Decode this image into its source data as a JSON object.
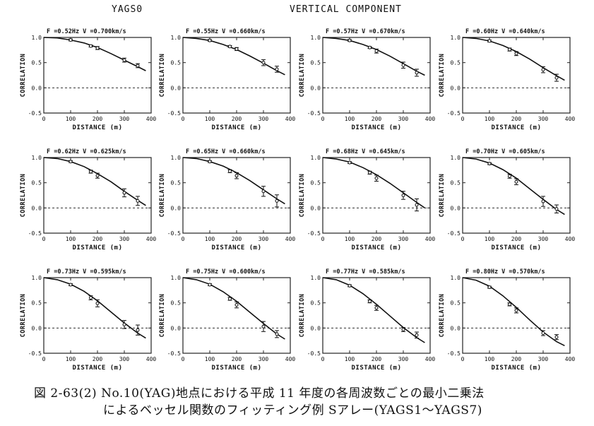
{
  "header": {
    "left": "YAGS0",
    "right": "VERTICAL COMPONENT"
  },
  "caption": {
    "line1": "図 2-63(2)  No.10(YAG)地点における平成 11 年度の各周波数ごとの最小二乗法",
    "line2": "によるベッセル関数のフィッティング例   Sアレー(YAGS1～YAGS7)"
  },
  "colors": {
    "ink": "#111111",
    "frame": "#222222"
  },
  "chart_data": [
    {
      "type": "line",
      "title": "F =0.52Hz  V =0.700km/s",
      "xlabel": "DISTANCE (m)",
      "ylabel": "CORRELATION",
      "xlim": [
        0,
        400
      ],
      "ylim": [
        -0.5,
        1.0
      ],
      "xticks": [
        "0",
        "100",
        "200",
        "300",
        "400"
      ],
      "yticks": [
        "-0.5",
        "0.0",
        "0.5",
        "1.0"
      ],
      "series": [
        {
          "type": "line",
          "x": [
            0,
            50,
            100,
            150,
            200,
            250,
            300,
            350,
            380
          ],
          "y": [
            1.0,
            0.99,
            0.95,
            0.89,
            0.8,
            0.68,
            0.55,
            0.42,
            0.34
          ]
        },
        {
          "type": "scatter",
          "x": [
            100,
            175,
            200,
            300,
            350
          ],
          "y": [
            0.95,
            0.83,
            0.79,
            0.55,
            0.44
          ],
          "err": [
            0.02,
            0.02,
            0.03,
            0.04,
            0.04
          ]
        }
      ]
    },
    {
      "type": "line",
      "title": "F =0.55Hz  V =0.660km/s",
      "xlabel": "DISTANCE (m)",
      "ylabel": "CORRELATION",
      "xlim": [
        0,
        400
      ],
      "ylim": [
        -0.5,
        1.0
      ],
      "xticks": [
        "0",
        "100",
        "200",
        "300",
        "400"
      ],
      "yticks": [
        "-0.5",
        "0.0",
        "0.5",
        "1.0"
      ],
      "series": [
        {
          "type": "line",
          "x": [
            0,
            50,
            100,
            150,
            200,
            250,
            300,
            350,
            380
          ],
          "y": [
            1.0,
            0.98,
            0.94,
            0.86,
            0.76,
            0.63,
            0.49,
            0.34,
            0.26
          ]
        },
        {
          "type": "scatter",
          "x": [
            100,
            175,
            200,
            300,
            350
          ],
          "y": [
            0.94,
            0.82,
            0.77,
            0.5,
            0.37
          ],
          "err": [
            0.02,
            0.02,
            0.03,
            0.06,
            0.06
          ]
        }
      ]
    },
    {
      "type": "line",
      "title": "F =0.57Hz  V =0.670km/s",
      "xlabel": "DISTANCE (m)",
      "ylabel": "CORRELATION",
      "xlim": [
        0,
        400
      ],
      "ylim": [
        -0.5,
        1.0
      ],
      "xticks": [
        "0",
        "100",
        "200",
        "300",
        "400"
      ],
      "yticks": [
        "-0.5",
        "0.0",
        "0.5",
        "1.0"
      ],
      "series": [
        {
          "type": "line",
          "x": [
            0,
            50,
            100,
            150,
            200,
            250,
            300,
            350,
            380
          ],
          "y": [
            1.0,
            0.98,
            0.94,
            0.86,
            0.76,
            0.63,
            0.48,
            0.33,
            0.25
          ]
        },
        {
          "type": "scatter",
          "x": [
            100,
            175,
            200,
            300,
            350
          ],
          "y": [
            0.94,
            0.8,
            0.73,
            0.45,
            0.3
          ],
          "err": [
            0.02,
            0.02,
            0.04,
            0.06,
            0.07
          ]
        }
      ]
    },
    {
      "type": "line",
      "title": "F =0.60Hz  V =0.640km/s",
      "xlabel": "DISTANCE (m)",
      "ylabel": "CORRELATION",
      "xlim": [
        0,
        400
      ],
      "ylim": [
        -0.5,
        1.0
      ],
      "xticks": [
        "0",
        "100",
        "200",
        "300",
        "400"
      ],
      "yticks": [
        "-0.5",
        "0.0",
        "0.5",
        "1.0"
      ],
      "series": [
        {
          "type": "line",
          "x": [
            0,
            50,
            100,
            150,
            200,
            250,
            300,
            350,
            380
          ],
          "y": [
            1.0,
            0.98,
            0.93,
            0.84,
            0.72,
            0.57,
            0.4,
            0.24,
            0.15
          ]
        },
        {
          "type": "scatter",
          "x": [
            100,
            175,
            200,
            300,
            350
          ],
          "y": [
            0.93,
            0.76,
            0.68,
            0.36,
            0.2
          ],
          "err": [
            0.02,
            0.03,
            0.04,
            0.06,
            0.07
          ]
        }
      ]
    },
    {
      "type": "line",
      "title": "F =0.62Hz  V =0.625km/s",
      "xlabel": "DISTANCE (m)",
      "ylabel": "CORRELATION",
      "xlim": [
        0,
        400
      ],
      "ylim": [
        -0.5,
        1.0
      ],
      "xticks": [
        "0",
        "100",
        "200",
        "300",
        "400"
      ],
      "yticks": [
        "-0.5",
        "0.0",
        "0.5",
        "1.0"
      ],
      "series": [
        {
          "type": "line",
          "x": [
            0,
            50,
            100,
            150,
            200,
            250,
            300,
            350,
            380
          ],
          "y": [
            1.0,
            0.98,
            0.92,
            0.82,
            0.68,
            0.52,
            0.33,
            0.15,
            0.05
          ]
        },
        {
          "type": "scatter",
          "x": [
            100,
            175,
            200,
            300,
            350
          ],
          "y": [
            0.92,
            0.72,
            0.64,
            0.3,
            0.14
          ],
          "err": [
            0.02,
            0.03,
            0.05,
            0.08,
            0.09
          ]
        }
      ]
    },
    {
      "type": "line",
      "title": "F =0.65Hz  V =0.660km/s",
      "xlabel": "DISTANCE (m)",
      "ylabel": "CORRELATION",
      "xlim": [
        0,
        400
      ],
      "ylim": [
        -0.5,
        1.0
      ],
      "xticks": [
        "0",
        "100",
        "200",
        "300",
        "400"
      ],
      "yticks": [
        "-0.5",
        "0.0",
        "0.5",
        "1.0"
      ],
      "series": [
        {
          "type": "line",
          "x": [
            0,
            50,
            100,
            150,
            200,
            250,
            300,
            350,
            380
          ],
          "y": [
            1.0,
            0.98,
            0.92,
            0.83,
            0.7,
            0.54,
            0.36,
            0.18,
            0.08
          ]
        },
        {
          "type": "scatter",
          "x": [
            100,
            175,
            200,
            300,
            350
          ],
          "y": [
            0.92,
            0.73,
            0.64,
            0.33,
            0.14
          ],
          "err": [
            0.02,
            0.03,
            0.06,
            0.1,
            0.12
          ]
        }
      ]
    },
    {
      "type": "line",
      "title": "F =0.68Hz  V =0.645km/s",
      "xlabel": "DISTANCE (m)",
      "ylabel": "CORRELATION",
      "xlim": [
        0,
        400
      ],
      "ylim": [
        -0.5,
        1.0
      ],
      "xticks": [
        "0",
        "100",
        "200",
        "300",
        "400"
      ],
      "yticks": [
        "-0.5",
        "0.0",
        "0.5",
        "1.0"
      ],
      "series": [
        {
          "type": "line",
          "x": [
            0,
            50,
            100,
            150,
            200,
            250,
            300,
            350,
            380
          ],
          "y": [
            1.0,
            0.97,
            0.91,
            0.8,
            0.66,
            0.49,
            0.3,
            0.11,
            0.0
          ]
        },
        {
          "type": "scatter",
          "x": [
            100,
            175,
            200,
            300,
            350
          ],
          "y": [
            0.9,
            0.7,
            0.59,
            0.25,
            0.06
          ],
          "err": [
            0.02,
            0.03,
            0.06,
            0.08,
            0.12
          ]
        }
      ]
    },
    {
      "type": "line",
      "title": "F =0.70Hz  V =0.605km/s",
      "xlabel": "DISTANCE (m)",
      "ylabel": "CORRELATION",
      "xlim": [
        0,
        400
      ],
      "ylim": [
        -0.5,
        1.0
      ],
      "xticks": [
        "0",
        "100",
        "200",
        "300",
        "400"
      ],
      "yticks": [
        "-0.5",
        "0.0",
        "0.5",
        "1.0"
      ],
      "series": [
        {
          "type": "line",
          "x": [
            0,
            50,
            100,
            150,
            200,
            250,
            300,
            350,
            380
          ],
          "y": [
            1.0,
            0.97,
            0.89,
            0.76,
            0.59,
            0.38,
            0.17,
            -0.03,
            -0.13
          ]
        },
        {
          "type": "scatter",
          "x": [
            100,
            175,
            200,
            300,
            350
          ],
          "y": [
            0.88,
            0.63,
            0.52,
            0.13,
            -0.02
          ],
          "err": [
            0.02,
            0.04,
            0.06,
            0.1,
            0.08
          ]
        }
      ]
    },
    {
      "type": "line",
      "title": "F =0.73Hz  V =0.595km/s",
      "xlabel": "DISTANCE (m)",
      "ylabel": "CORRELATION",
      "xlim": [
        0,
        400
      ],
      "ylim": [
        -0.5,
        1.0
      ],
      "xticks": [
        "0",
        "100",
        "200",
        "300",
        "400"
      ],
      "yticks": [
        "-0.5",
        "0.0",
        "0.5",
        "1.0"
      ],
      "series": [
        {
          "type": "line",
          "x": [
            0,
            50,
            100,
            150,
            200,
            250,
            300,
            350,
            380
          ],
          "y": [
            1.0,
            0.96,
            0.87,
            0.73,
            0.54,
            0.32,
            0.1,
            -0.1,
            -0.2
          ]
        },
        {
          "type": "scatter",
          "x": [
            100,
            175,
            200,
            300,
            350
          ],
          "y": [
            0.86,
            0.6,
            0.49,
            0.07,
            -0.04
          ],
          "err": [
            0.02,
            0.04,
            0.07,
            0.08,
            0.1
          ]
        }
      ]
    },
    {
      "type": "line",
      "title": "F =0.75Hz  V =0.600km/s",
      "xlabel": "DISTANCE (m)",
      "ylabel": "CORRELATION",
      "xlim": [
        0,
        400
      ],
      "ylim": [
        -0.5,
        1.0
      ],
      "xticks": [
        "0",
        "100",
        "200",
        "300",
        "400"
      ],
      "yticks": [
        "-0.5",
        "0.0",
        "0.5",
        "1.0"
      ],
      "series": [
        {
          "type": "line",
          "x": [
            0,
            50,
            100,
            150,
            200,
            250,
            300,
            350,
            380
          ],
          "y": [
            1.0,
            0.96,
            0.87,
            0.72,
            0.53,
            0.31,
            0.09,
            -0.12,
            -0.22
          ]
        },
        {
          "type": "scatter",
          "x": [
            100,
            175,
            200,
            300,
            350
          ],
          "y": [
            0.86,
            0.58,
            0.46,
            0.03,
            -0.12
          ],
          "err": [
            0.02,
            0.03,
            0.06,
            0.1,
            0.07
          ]
        }
      ]
    },
    {
      "type": "line",
      "title": "F =0.77Hz  V =0.585km/s",
      "xlabel": "DISTANCE (m)",
      "ylabel": "CORRELATION",
      "xlim": [
        0,
        400
      ],
      "ylim": [
        -0.5,
        1.0
      ],
      "xticks": [
        "0",
        "100",
        "200",
        "300",
        "400"
      ],
      "yticks": [
        "-0.5",
        "0.0",
        "0.5",
        "1.0"
      ],
      "series": [
        {
          "type": "line",
          "x": [
            0,
            50,
            100,
            150,
            200,
            250,
            300,
            350,
            380
          ],
          "y": [
            1.0,
            0.96,
            0.85,
            0.68,
            0.47,
            0.24,
            0.01,
            -0.19,
            -0.29
          ]
        },
        {
          "type": "scatter",
          "x": [
            100,
            175,
            200,
            300,
            350
          ],
          "y": [
            0.84,
            0.53,
            0.4,
            -0.03,
            -0.14
          ],
          "err": [
            0.02,
            0.03,
            0.05,
            0.04,
            0.06
          ]
        }
      ]
    },
    {
      "type": "line",
      "title": "F =0.80Hz  V =0.570km/s",
      "xlabel": "DISTANCE (m)",
      "ylabel": "CORRELATION",
      "xlim": [
        0,
        400
      ],
      "ylim": [
        -0.5,
        1.0
      ],
      "xticks": [
        "0",
        "100",
        "200",
        "300",
        "400"
      ],
      "yticks": [
        "-0.5",
        "0.0",
        "0.5",
        "1.0"
      ],
      "series": [
        {
          "type": "line",
          "x": [
            0,
            50,
            100,
            150,
            200,
            250,
            300,
            350,
            380
          ],
          "y": [
            1.0,
            0.95,
            0.83,
            0.64,
            0.41,
            0.16,
            -0.08,
            -0.27,
            -0.35
          ]
        },
        {
          "type": "scatter",
          "x": [
            100,
            175,
            200,
            300,
            350
          ],
          "y": [
            0.81,
            0.47,
            0.35,
            -0.1,
            -0.18
          ],
          "err": [
            0.02,
            0.03,
            0.05,
            0.05,
            0.05
          ]
        }
      ]
    }
  ]
}
